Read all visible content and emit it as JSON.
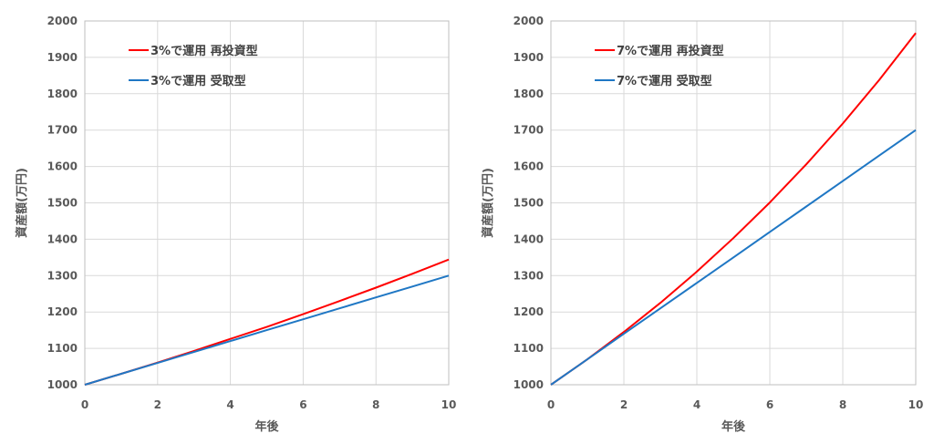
{
  "chart_data": [
    {
      "type": "line",
      "xlabel": "年後",
      "ylabel": "資産額(万円)",
      "xlim": [
        0,
        10
      ],
      "ylim": [
        1000,
        2000
      ],
      "xticks": [
        0,
        2,
        4,
        6,
        8,
        10
      ],
      "yticks": [
        1000,
        1100,
        1200,
        1300,
        1400,
        1500,
        1600,
        1700,
        1800,
        1900,
        2000
      ],
      "grid": true,
      "legend_position": "top-left",
      "x": [
        0,
        1,
        2,
        3,
        4,
        5,
        6,
        7,
        8,
        9,
        10
      ],
      "series": [
        {
          "name": "3%で運用 再投資型",
          "color": "#ff0000",
          "values": [
            1000,
            1030,
            1061,
            1093,
            1126,
            1159,
            1194,
            1230,
            1267,
            1305,
            1344
          ]
        },
        {
          "name": "3%で運用 受取型",
          "color": "#1f77c4",
          "values": [
            1000,
            1030,
            1060,
            1090,
            1120,
            1150,
            1180,
            1210,
            1240,
            1270,
            1300
          ]
        }
      ]
    },
    {
      "type": "line",
      "xlabel": "年後",
      "ylabel": "資産額(万円)",
      "xlim": [
        0,
        10
      ],
      "ylim": [
        1000,
        2000
      ],
      "xticks": [
        0,
        2,
        4,
        6,
        8,
        10
      ],
      "yticks": [
        1000,
        1100,
        1200,
        1300,
        1400,
        1500,
        1600,
        1700,
        1800,
        1900,
        2000
      ],
      "grid": true,
      "legend_position": "top-left",
      "x": [
        0,
        1,
        2,
        3,
        4,
        5,
        6,
        7,
        8,
        9,
        10
      ],
      "series": [
        {
          "name": "7%で運用 再投資型",
          "color": "#ff0000",
          "values": [
            1000,
            1070,
            1145,
            1225,
            1311,
            1403,
            1501,
            1606,
            1718,
            1838,
            1967
          ]
        },
        {
          "name": "7%で運用 受取型",
          "color": "#1f77c4",
          "values": [
            1000,
            1070,
            1140,
            1210,
            1280,
            1350,
            1420,
            1490,
            1560,
            1630,
            1700
          ]
        }
      ]
    }
  ]
}
